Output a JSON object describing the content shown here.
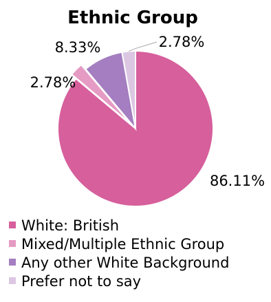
{
  "chart_data": {
    "type": "pie",
    "title": "Ethnic Group",
    "categories": [
      "White: British",
      "Mixed/Multiple Ethnic Group",
      "Any other White Background",
      "Prefer not to say"
    ],
    "values": [
      86.11,
      2.78,
      8.33,
      2.78
    ],
    "data_labels": [
      "86.11%",
      "2.78%",
      "8.33%",
      "2.78%"
    ],
    "colors": [
      "#D65F9C",
      "#E59BC3",
      "#A47EC0",
      "#DCC7E3"
    ],
    "start_angle_deg": 0,
    "direction": "clockwise",
    "legend_position": "bottom",
    "exploded_slices": [
      "Mixed/Multiple Ethnic Group"
    ]
  }
}
